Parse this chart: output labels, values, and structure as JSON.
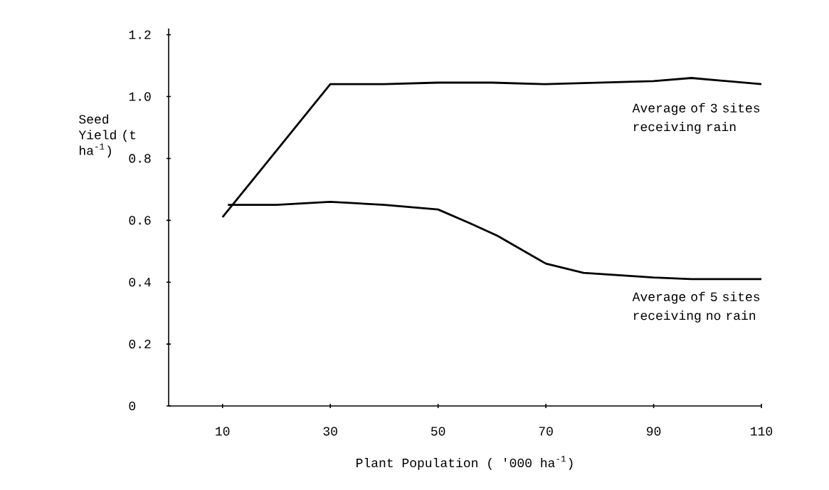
{
  "chart_data": {
    "type": "line",
    "xlabel": "Plant Population ( '000 ha$^{-1}$)",
    "ylabel": "Seed Yield (t ha$^{-1}$)",
    "series": [
      {
        "name": "Average of 3 sites receiving rain",
        "color": "#000000",
        "x": [
          10,
          30,
          40,
          50,
          60,
          70,
          80,
          90,
          97,
          110
        ],
        "values": [
          0.61,
          1.04,
          1.04,
          1.045,
          1.045,
          1.04,
          1.045,
          1.05,
          1.06,
          1.04
        ]
      },
      {
        "name": "Average of 5 sites receiving no rain",
        "color": "#000000",
        "x": [
          11,
          20,
          30,
          40,
          50,
          56,
          61,
          70,
          77,
          90,
          97,
          110
        ],
        "values": [
          0.65,
          0.65,
          0.66,
          0.65,
          0.635,
          0.59,
          0.55,
          0.46,
          0.43,
          0.415,
          0.41,
          0.41
        ]
      }
    ],
    "xlim": [
      0,
      110
    ],
    "ylim": [
      0,
      1.22
    ],
    "xticks": [
      10,
      30,
      50,
      70,
      90,
      110
    ],
    "yticks": [
      0,
      0.2,
      0.4,
      0.6,
      0.8,
      {
        "value": 1.0,
        "label": "1.0"
      },
      1.2
    ],
    "grid": false,
    "legend": false,
    "marker": "none",
    "line_style": "solid"
  }
}
